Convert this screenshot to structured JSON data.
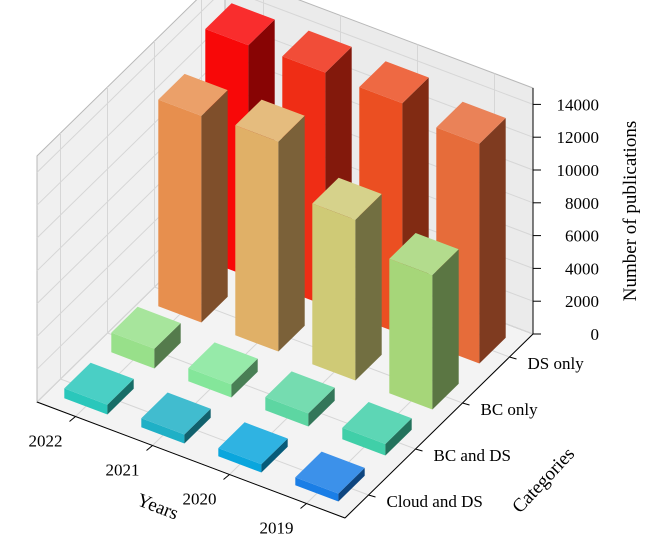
{
  "chart_data": {
    "type": "bar3d",
    "x_categories": [
      "2019",
      "2020",
      "2021",
      "2022"
    ],
    "y_categories": [
      "Cloud and DS",
      "BC and DS",
      "BC only",
      "DS only"
    ],
    "series": [
      {
        "name": "Cloud and DS",
        "values": [
          480,
          500,
          550,
          600
        ]
      },
      {
        "name": "BC and DS",
        "values": [
          700,
          800,
          800,
          1200
        ]
      },
      {
        "name": "BC only",
        "values": [
          8200,
          9800,
          12800,
          12600
        ]
      },
      {
        "name": "DS only",
        "values": [
          13400,
          14100,
          14200,
          14100
        ]
      }
    ],
    "xlabel": "Years",
    "ylabel": "Categories",
    "zlabel": "Number of publications",
    "zlim": [
      0,
      15000
    ],
    "z_ticks": [
      "0",
      "2000",
      "4000",
      "6000",
      "8000",
      "10000",
      "12000",
      "14000"
    ],
    "grid": true,
    "bar_colors": [
      [
        "#1a7ee6",
        "#0aa6dd",
        "#1fb0c6",
        "#2ac7bb"
      ],
      [
        "#40cfa8",
        "#5dd6a2",
        "#84e69a",
        "#98e08a"
      ],
      [
        "#a6d679",
        "#cfca76",
        "#e0b067",
        "#e78f4e"
      ],
      [
        "#e66c3a",
        "#eb4f22",
        "#ef2d15",
        "#f80808"
      ]
    ]
  }
}
